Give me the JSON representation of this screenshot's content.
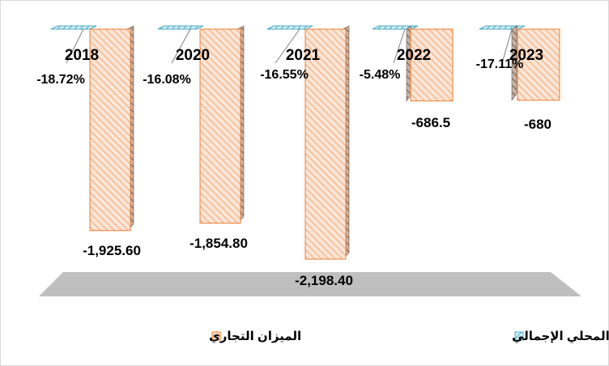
{
  "chart_data": {
    "type": "bar",
    "categories": [
      "2018",
      "2020",
      "2021",
      "2022",
      "2023"
    ],
    "series": [
      {
        "name": "الميزان التجاري",
        "values": [
          -1925.6,
          -1854.8,
          -2198.4,
          -686.5,
          -680
        ],
        "labels": [
          "-1,925.60",
          "-1,854.80",
          "-2,198.40",
          "-686.5",
          "-680"
        ],
        "color": "#f4b183",
        "edge": "#ed7d31"
      },
      {
        "name": "الميزان التجاري % من الناتج المحلي الإجمالي",
        "values": [
          -18.72,
          -16.08,
          -16.55,
          -5.48,
          -17.11
        ],
        "labels": [
          "-18.72%",
          "-16.08%",
          "-16.55%",
          "-5.48%",
          "-17.11%"
        ],
        "color": "#9dc3e6",
        "edge": "#4bacc6"
      }
    ],
    "style": "3d-column",
    "grid": false,
    "legend_position": "bottom",
    "floor_color": "#bfbfbf"
  }
}
